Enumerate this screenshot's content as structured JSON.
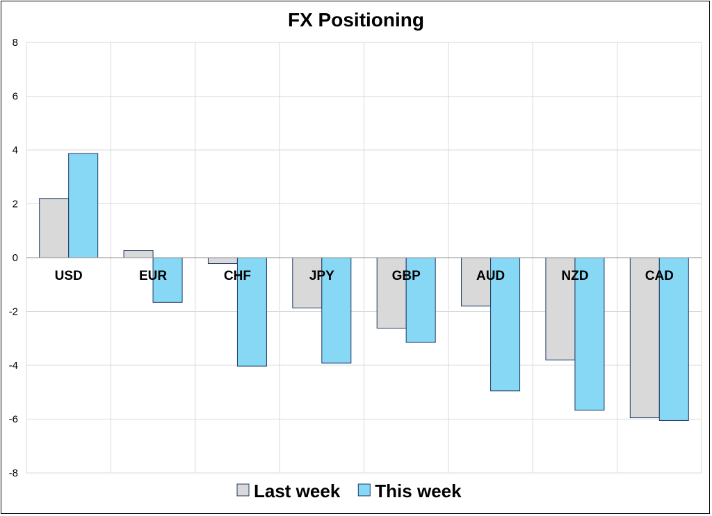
{
  "chart_data": {
    "type": "bar",
    "title": "FX Positioning",
    "xlabel": "",
    "ylabel": "",
    "categories": [
      "USD",
      "EUR",
      "CHF",
      "JPY",
      "GBP",
      "AUD",
      "NZD",
      "CAD"
    ],
    "series": [
      {
        "name": "Last week",
        "values": [
          2.2,
          0.27,
          -0.22,
          -1.87,
          -2.62,
          -1.8,
          -3.8,
          -5.95
        ],
        "color": "#d9d9d9"
      },
      {
        "name": "This week",
        "values": [
          3.87,
          -1.66,
          -4.03,
          -3.92,
          -3.15,
          -4.95,
          -5.67,
          -6.05
        ],
        "color": "#87d8f5"
      }
    ],
    "bar_stroke": "#1f3864",
    "ylim": [
      -8,
      8
    ],
    "yticks": [
      "8",
      "6",
      "4",
      "2",
      "0",
      "-2",
      "-4",
      "-6",
      "-8"
    ],
    "ytick_values": [
      8,
      6,
      4,
      2,
      0,
      -2,
      -4,
      -6,
      -8
    ],
    "grid": true,
    "legend_position": "bottom"
  }
}
